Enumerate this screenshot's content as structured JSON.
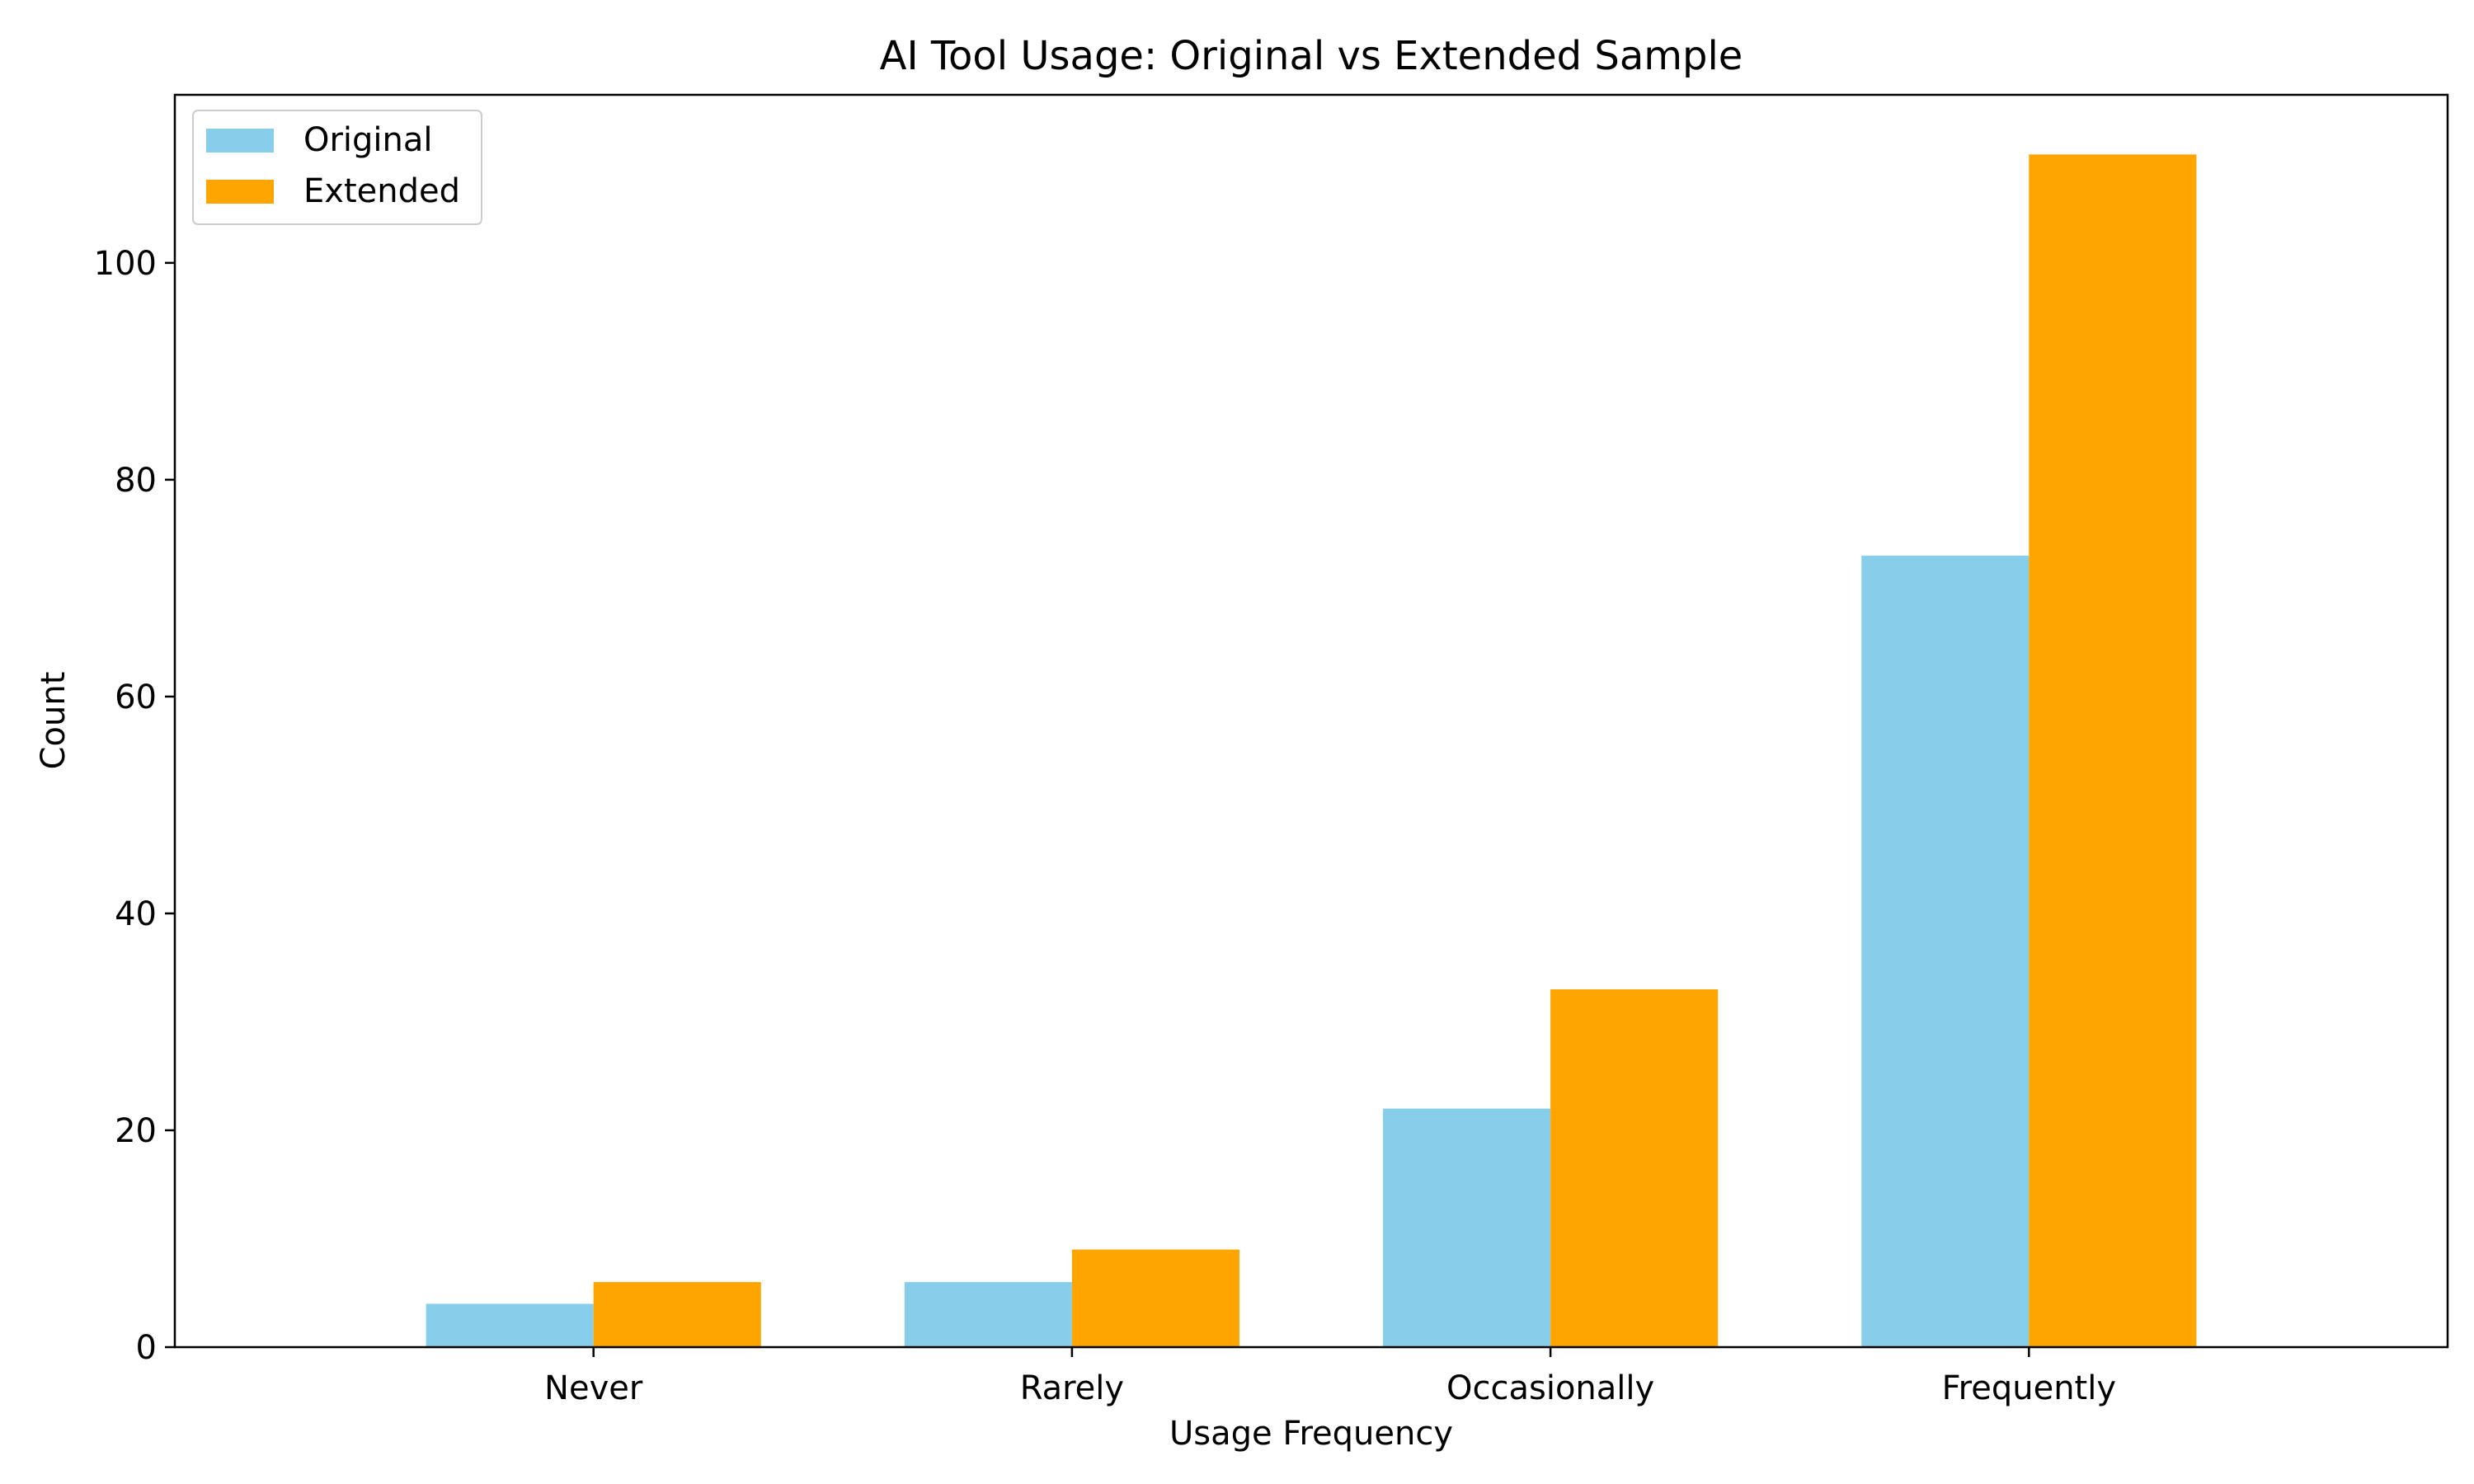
{
  "chart_data": {
    "type": "bar",
    "title": "AI Tool Usage: Original vs Extended Sample",
    "xlabel": "Usage Frequency",
    "ylabel": "Count",
    "categories": [
      "Never",
      "Rarely",
      "Occasionally",
      "Frequently"
    ],
    "series": [
      {
        "name": "Original",
        "color": "#87ceeb",
        "values": [
          4,
          6,
          22,
          73
        ]
      },
      {
        "name": "Extended",
        "color": "#ffa500",
        "values": [
          6,
          9,
          33,
          110
        ]
      }
    ],
    "ylim": [
      0,
      115.5
    ],
    "yticks": [
      0,
      20,
      40,
      60,
      80,
      100
    ],
    "legend_position": "top-left",
    "grid": false
  }
}
